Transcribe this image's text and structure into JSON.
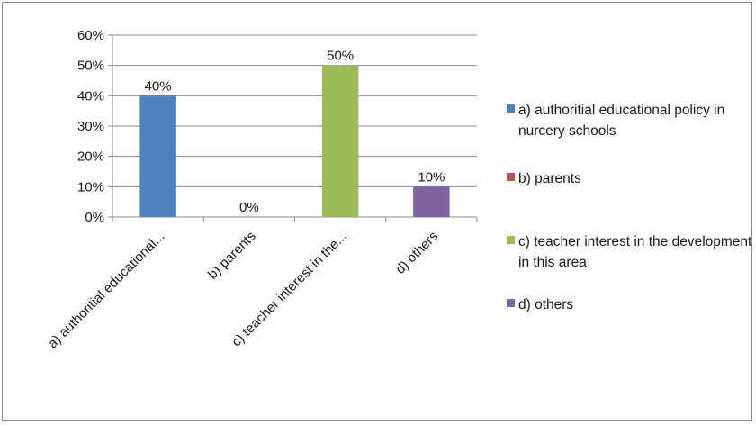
{
  "chart_data": {
    "type": "bar",
    "categories": [
      "a) authoritial educational policy in nurcery schools",
      "b)  parents",
      "c) teacher interest in the development in this area",
      "d) others"
    ],
    "category_tick_labels": [
      "a) authoritial educational...",
      "b)  parents",
      "c) teacher interest in the...",
      "d) others"
    ],
    "values": [
      40,
      0,
      50,
      10
    ],
    "data_labels": [
      "40%",
      "0%",
      "50%",
      "10%"
    ],
    "colors": [
      "#4f81bd",
      "#c0504d",
      "#9bbb59",
      "#8064a2"
    ],
    "ylim": [
      0,
      60
    ],
    "y_ticks": [
      0,
      10,
      20,
      30,
      40,
      50,
      60
    ],
    "y_tick_labels": [
      "0%",
      "10%",
      "20%",
      "30%",
      "40%",
      "50%",
      "60%"
    ],
    "grid": true,
    "legend_position": "right",
    "legend": [
      {
        "label": "a) authoritial educational policy in nurcery schools",
        "color": "#4f81bd"
      },
      {
        "label": "b)  parents",
        "color": "#c0504d"
      },
      {
        "label": "c) teacher interest in the development in this area",
        "color": "#9bbb59"
      },
      {
        "label": "d) others",
        "color": "#8064a2"
      }
    ]
  }
}
